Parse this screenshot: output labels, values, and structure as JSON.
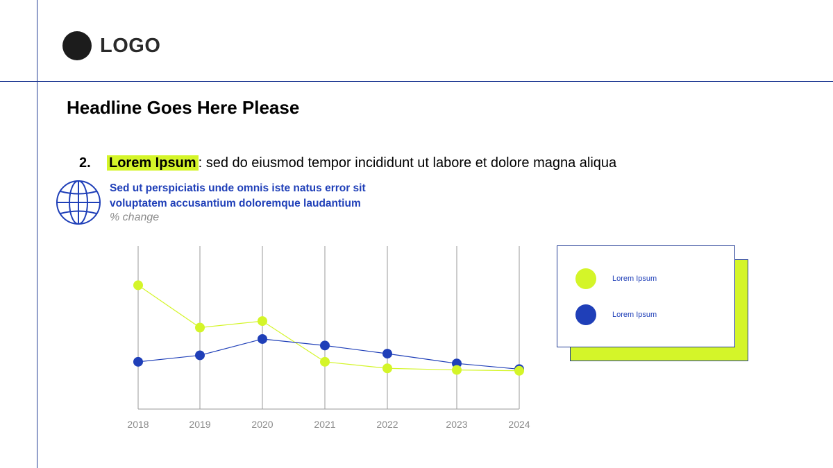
{
  "logo": {
    "text": "LOGO"
  },
  "headline": "Headline Goes Here Please",
  "point": {
    "number": "2.",
    "term": "Lorem Ipsum",
    "text": ": sed do eiusmod tempor incididunt ut labore et dolore magna aliqua"
  },
  "icons": {
    "globe": "globe-icon",
    "logo": "logo-circle-icon"
  },
  "colors": {
    "accent": "#d4f529",
    "primary": "#1f3fb8",
    "rule": "#1f3a93"
  },
  "chart_data": {
    "type": "line",
    "title_line1": "Sed ut perspiciatis unde omnis iste natus error sit",
    "title_line2": "voluptatem accusantium doloremque laudantium",
    "subtitle": "% change",
    "xlabel": "",
    "ylabel": "",
    "categories": [
      "2018",
      "2019",
      "2020",
      "2021",
      "2022",
      "2023",
      "2024"
    ],
    "ylim": [
      0,
      10
    ],
    "grid": "vertical",
    "legend_position": "right",
    "series": [
      {
        "name": "Lorem Ipsum",
        "color": "#d4f529",
        "values": [
          7.6,
          5.0,
          5.4,
          2.9,
          2.5,
          2.4,
          2.35
        ]
      },
      {
        "name": "Lorem Ipsum",
        "color": "#1f3fb8",
        "values": [
          2.9,
          3.3,
          4.3,
          3.9,
          3.4,
          2.8,
          2.45
        ]
      }
    ]
  }
}
